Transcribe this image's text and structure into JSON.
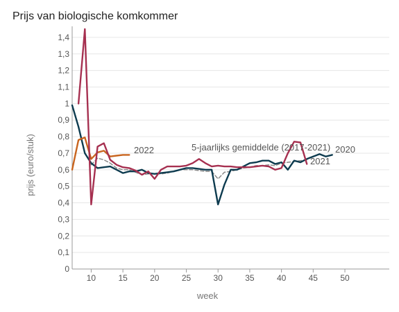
{
  "chart_data": {
    "type": "line",
    "title": "Prijs van biologische komkommer",
    "xlabel": "week",
    "ylabel": "prijs (euro/stuk)",
    "xlim": [
      7,
      57
    ],
    "ylim": [
      0,
      1.45
    ],
    "xticks": [
      10,
      15,
      20,
      25,
      30,
      35,
      40,
      45,
      50
    ],
    "yticks": [
      0,
      0.1,
      0.2,
      0.3,
      0.4,
      0.5,
      0.6,
      0.7,
      0.8,
      0.9,
      1,
      1.1,
      1.2,
      1.3,
      1.4
    ],
    "ytick_labels": [
      "0",
      "0,1",
      "0,2",
      "0,3",
      "0,4",
      "0,5",
      "0,6",
      "0,7",
      "0,8",
      "0,9",
      "1",
      "1,1",
      "1,2",
      "1,3",
      "1,4"
    ],
    "grid": true,
    "series": [
      {
        "name": "2020",
        "color": "#0d3b4f",
        "dash": false,
        "x": [
          7,
          8,
          9,
          10,
          11,
          12,
          13,
          14,
          15,
          16,
          17,
          18,
          19,
          20,
          21,
          22,
          23,
          24,
          25,
          26,
          27,
          28,
          29,
          30,
          31,
          32,
          33,
          34,
          35,
          36,
          37,
          38,
          39,
          40,
          41,
          42,
          43,
          44,
          45,
          46,
          47,
          48
        ],
        "values": [
          0.99,
          0.86,
          0.7,
          0.64,
          0.61,
          0.615,
          0.62,
          0.6,
          0.58,
          0.59,
          0.59,
          0.6,
          0.58,
          0.575,
          0.58,
          0.585,
          0.59,
          0.6,
          0.61,
          0.61,
          0.605,
          0.6,
          0.6,
          0.39,
          0.51,
          0.6,
          0.6,
          0.62,
          0.64,
          0.645,
          0.655,
          0.655,
          0.635,
          0.645,
          0.6,
          0.655,
          0.645,
          0.665,
          0.68,
          0.695,
          0.68,
          0.69
        ]
      },
      {
        "name": "2021",
        "color": "#a63050",
        "dash": false,
        "x": [
          8,
          9,
          10,
          11,
          12,
          13,
          14,
          15,
          16,
          17,
          18,
          19,
          20,
          21,
          22,
          23,
          24,
          25,
          26,
          27,
          28,
          29,
          30,
          31,
          32,
          33,
          34,
          35,
          36,
          37,
          38,
          39,
          40,
          41,
          42,
          43,
          44
        ],
        "values": [
          1.0,
          1.45,
          0.39,
          0.74,
          0.76,
          0.66,
          0.63,
          0.615,
          0.61,
          0.595,
          0.57,
          0.59,
          0.545,
          0.6,
          0.62,
          0.62,
          0.62,
          0.625,
          0.64,
          0.665,
          0.64,
          0.62,
          0.625,
          0.62,
          0.62,
          0.615,
          0.615,
          0.615,
          0.62,
          0.625,
          0.62,
          0.6,
          0.61,
          0.7,
          0.77,
          0.765,
          0.635
        ]
      },
      {
        "name": "2022",
        "color": "#c8641e",
        "dash": false,
        "x": [
          7,
          8,
          9,
          10,
          11,
          12,
          13,
          14,
          15,
          16
        ],
        "values": [
          0.6,
          0.78,
          0.795,
          0.665,
          0.705,
          0.715,
          0.68,
          0.685,
          0.69,
          0.69
        ]
      },
      {
        "name": "5-jaarlijks gemiddelde (2017-2021)",
        "color": "#888888",
        "dash": true,
        "x": [
          10,
          11,
          12,
          13,
          14,
          15,
          16,
          17,
          18,
          19,
          20,
          21,
          22,
          23,
          24,
          25,
          26,
          27,
          28,
          29,
          30,
          31,
          32,
          33,
          34,
          35,
          36,
          37,
          38,
          39,
          40,
          41,
          42,
          43,
          44
        ],
        "values": [
          0.63,
          0.67,
          0.66,
          0.64,
          0.61,
          0.6,
          0.6,
          0.585,
          0.57,
          0.575,
          0.575,
          0.575,
          0.58,
          0.59,
          0.6,
          0.6,
          0.6,
          0.595,
          0.59,
          0.59,
          0.545,
          0.585,
          0.59,
          0.6,
          0.61,
          0.615,
          0.625,
          0.625,
          0.63,
          0.625,
          0.64,
          0.645,
          0.65,
          0.655,
          0.66
        ]
      }
    ],
    "labels": {
      "series_2022": "2022",
      "series_avg": "5-jaarlijks gemiddelde (2017-2021)",
      "series_2020": "2020",
      "series_2021": "2021"
    }
  }
}
